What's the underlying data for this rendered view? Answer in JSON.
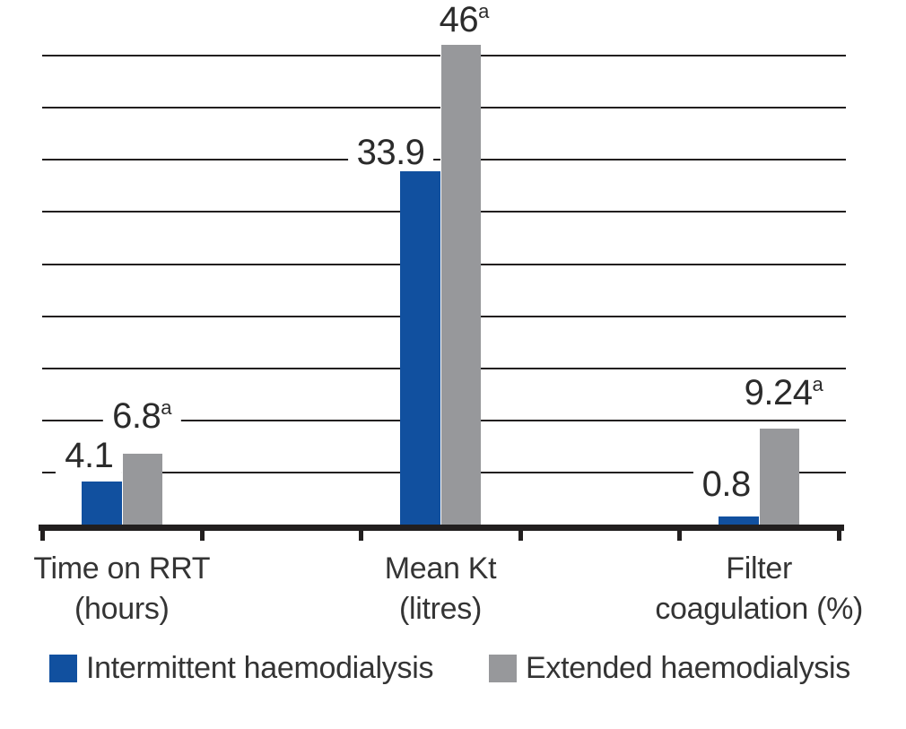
{
  "chart_data": {
    "type": "bar",
    "title": "",
    "xlabel": "",
    "ylabel": "",
    "ylim": [
      0,
      46.5
    ],
    "grid": "horizontal",
    "gridline_values": [
      5,
      10,
      15,
      20,
      25,
      30,
      35,
      40,
      45
    ],
    "axis_slots": 5,
    "group_slot_indices": [
      0,
      2,
      4
    ],
    "legend_position": "bottom",
    "categories": [
      {
        "lines": [
          "Time on RRT",
          "(hours)"
        ]
      },
      {
        "lines": [
          "Mean Kt",
          "(litres)"
        ]
      },
      {
        "lines": [
          "Filter",
          "coagulation (%)"
        ]
      }
    ],
    "series": [
      {
        "name": "Intermittent haemodialysis",
        "color": "#11509f",
        "values": [
          4.1,
          33.9,
          0.8
        ],
        "labels": [
          "4.1",
          "33.9",
          "0.8"
        ],
        "superscript": "",
        "label_dx": [
          -14,
          -33,
          -14
        ],
        "label_gap": [
          9,
          1,
          16
        ]
      },
      {
        "name": "Extended haemodialysis",
        "color": "#97989b",
        "values": [
          6.8,
          46,
          9.24
        ],
        "labels": [
          "6.8",
          "46",
          "9.24"
        ],
        "superscript": "a",
        "label_dx": [
          0,
          4,
          5
        ],
        "label_gap": [
          22,
          8,
          20
        ]
      }
    ],
    "colors": {
      "grid": "#221f1f",
      "axis": "#221f1f",
      "text": "#2b2b2b"
    }
  }
}
